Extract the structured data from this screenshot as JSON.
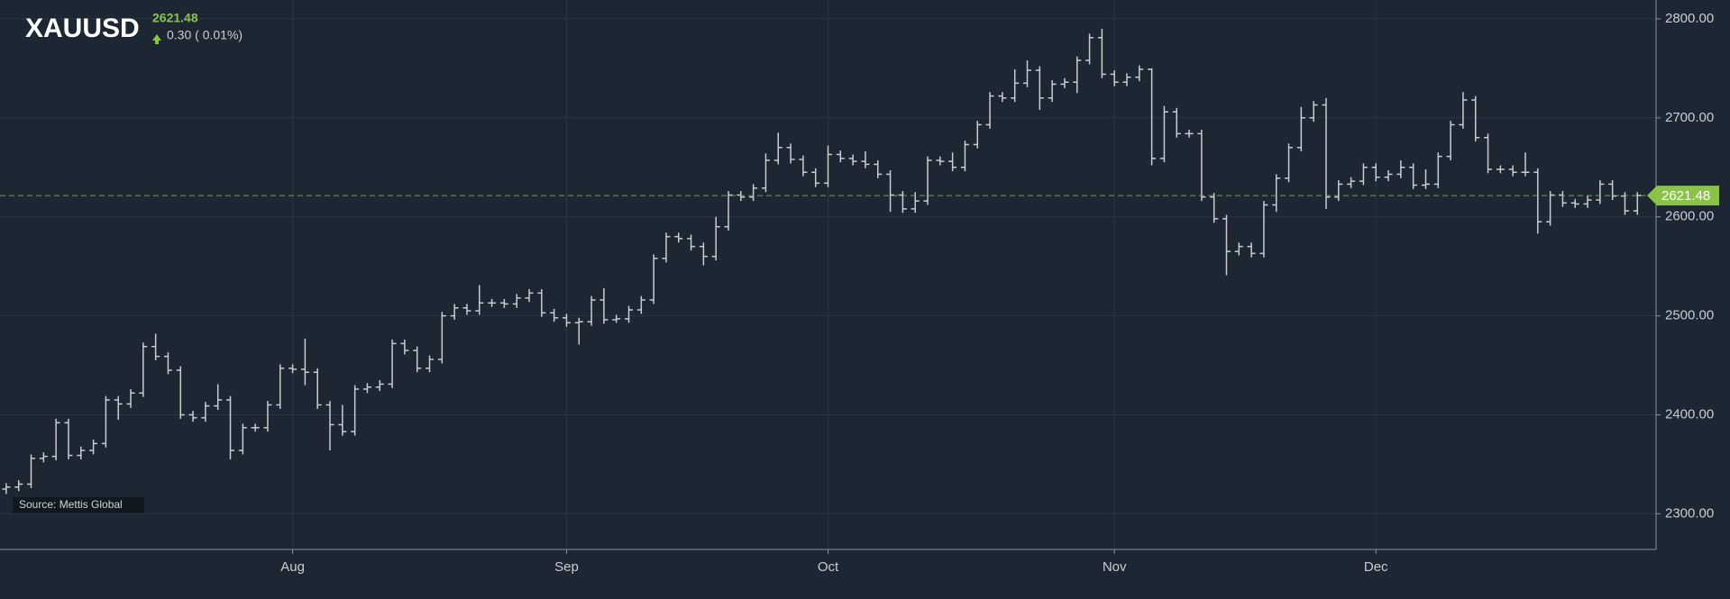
{
  "chart_data": {
    "type": "ohlc",
    "title": "XAUUSD",
    "last_price": 2621.48,
    "change": "0.30 ( 0.01%)",
    "source": "Source: Mettis Global",
    "color": "#c9cdd2",
    "last_price_color": "#8bc34a",
    "grid": true,
    "ylim": [
      2264,
      2819
    ],
    "yticks": [
      {
        "value": 2300,
        "label": "2300.00"
      },
      {
        "value": 2400,
        "label": "2400.00"
      },
      {
        "value": 2500,
        "label": "2500.00"
      },
      {
        "value": 2600,
        "label": "2600.00"
      },
      {
        "value": 2700,
        "label": "2700.00"
      },
      {
        "value": 2800,
        "label": "2800.00"
      }
    ],
    "xlim": [
      -0.5,
      132.5
    ],
    "xticks": [
      {
        "value": 23,
        "label": "Aug"
      },
      {
        "value": 45,
        "label": "Sep"
      },
      {
        "value": 66,
        "label": "Oct"
      },
      {
        "value": 89,
        "label": "Nov"
      },
      {
        "value": 110,
        "label": "Dec"
      }
    ],
    "ohlc": [
      [
        2325,
        2331,
        2320,
        2327
      ],
      [
        2327,
        2334,
        2323,
        2330
      ],
      [
        2330,
        2360,
        2326,
        2356
      ],
      [
        2356,
        2362,
        2352,
        2358
      ],
      [
        2358,
        2396,
        2354,
        2392
      ],
      [
        2392,
        2396,
        2355,
        2359
      ],
      [
        2359,
        2368,
        2355,
        2364
      ],
      [
        2364,
        2375,
        2360,
        2371
      ],
      [
        2371,
        2419,
        2367,
        2415
      ],
      [
        2415,
        2419,
        2395,
        2411
      ],
      [
        2411,
        2426,
        2407,
        2422
      ],
      [
        2422,
        2473,
        2418,
        2469
      ],
      [
        2469,
        2482,
        2455,
        2459
      ],
      [
        2459,
        2463,
        2441,
        2445
      ],
      [
        2445,
        2449,
        2396,
        2400
      ],
      [
        2400,
        2404,
        2393,
        2397
      ],
      [
        2397,
        2413,
        2393,
        2409
      ],
      [
        2409,
        2431,
        2405,
        2415
      ],
      [
        2415,
        2419,
        2355,
        2364
      ],
      [
        2364,
        2391,
        2360,
        2387
      ],
      [
        2387,
        2391,
        2383,
        2387
      ],
      [
        2387,
        2414,
        2383,
        2410
      ],
      [
        2410,
        2451,
        2406,
        2447
      ],
      [
        2447,
        2451,
        2442,
        2446
      ],
      [
        2446,
        2477,
        2430,
        2443
      ],
      [
        2443,
        2447,
        2406,
        2410
      ],
      [
        2410,
        2414,
        2364,
        2390
      ],
      [
        2390,
        2410,
        2379,
        2383
      ],
      [
        2383,
        2430,
        2379,
        2426
      ],
      [
        2426,
        2432,
        2422,
        2428
      ],
      [
        2428,
        2435,
        2424,
        2431
      ],
      [
        2431,
        2476,
        2427,
        2472
      ],
      [
        2472,
        2476,
        2461,
        2465
      ],
      [
        2465,
        2469,
        2443,
        2447
      ],
      [
        2447,
        2460,
        2443,
        2456
      ],
      [
        2456,
        2504,
        2452,
        2500
      ],
      [
        2500,
        2512,
        2496,
        2508
      ],
      [
        2508,
        2512,
        2501,
        2505
      ],
      [
        2505,
        2531,
        2501,
        2513
      ],
      [
        2513,
        2517,
        2509,
        2513
      ],
      [
        2513,
        2517,
        2508,
        2512
      ],
      [
        2512,
        2522,
        2508,
        2518
      ],
      [
        2518,
        2527,
        2514,
        2523
      ],
      [
        2523,
        2527,
        2499,
        2503
      ],
      [
        2503,
        2507,
        2494,
        2498
      ],
      [
        2498,
        2502,
        2489,
        2493
      ],
      [
        2493,
        2498,
        2471,
        2494
      ],
      [
        2494,
        2520,
        2490,
        2516
      ],
      [
        2516,
        2528,
        2492,
        2496
      ],
      [
        2496,
        2501,
        2493,
        2497
      ],
      [
        2497,
        2510,
        2493,
        2506
      ],
      [
        2506,
        2520,
        2502,
        2516
      ],
      [
        2516,
        2562,
        2512,
        2558
      ],
      [
        2558,
        2584,
        2554,
        2580
      ],
      [
        2580,
        2584,
        2574,
        2578
      ],
      [
        2578,
        2582,
        2566,
        2570
      ],
      [
        2570,
        2574,
        2551,
        2560
      ],
      [
        2560,
        2600,
        2556,
        2590
      ],
      [
        2590,
        2626,
        2586,
        2622
      ],
      [
        2622,
        2626,
        2616,
        2620
      ],
      [
        2620,
        2633,
        2616,
        2629
      ],
      [
        2629,
        2664,
        2625,
        2657
      ],
      [
        2657,
        2685,
        2653,
        2670
      ],
      [
        2670,
        2674,
        2654,
        2658
      ],
      [
        2658,
        2662,
        2641,
        2645
      ],
      [
        2645,
        2649,
        2630,
        2634
      ],
      [
        2634,
        2672,
        2630,
        2663
      ],
      [
        2663,
        2667,
        2655,
        2659
      ],
      [
        2659,
        2663,
        2652,
        2656
      ],
      [
        2656,
        2666,
        2649,
        2653
      ],
      [
        2653,
        2657,
        2639,
        2643
      ],
      [
        2643,
        2647,
        2605,
        2622
      ],
      [
        2622,
        2626,
        2604,
        2608
      ],
      [
        2608,
        2625,
        2604,
        2616
      ],
      [
        2616,
        2661,
        2612,
        2657
      ],
      [
        2657,
        2661,
        2652,
        2656
      ],
      [
        2656,
        2665,
        2646,
        2650
      ],
      [
        2650,
        2677,
        2646,
        2673
      ],
      [
        2673,
        2697,
        2669,
        2693
      ],
      [
        2693,
        2726,
        2689,
        2722
      ],
      [
        2722,
        2726,
        2716,
        2720
      ],
      [
        2720,
        2749,
        2716,
        2735
      ],
      [
        2735,
        2758,
        2731,
        2748
      ],
      [
        2748,
        2752,
        2708,
        2720
      ],
      [
        2720,
        2738,
        2716,
        2734
      ],
      [
        2734,
        2740,
        2730,
        2736
      ],
      [
        2736,
        2762,
        2725,
        2758
      ],
      [
        2758,
        2785,
        2754,
        2781
      ],
      [
        2781,
        2790,
        2740,
        2744
      ],
      [
        2744,
        2748,
        2732,
        2736
      ],
      [
        2736,
        2745,
        2732,
        2741
      ],
      [
        2741,
        2753,
        2737,
        2749
      ],
      [
        2749,
        2750,
        2652,
        2659
      ],
      [
        2659,
        2712,
        2655,
        2706
      ],
      [
        2706,
        2710,
        2680,
        2684
      ],
      [
        2684,
        2688,
        2680,
        2684
      ],
      [
        2684,
        2688,
        2616,
        2620
      ],
      [
        2620,
        2624,
        2594,
        2598
      ],
      [
        2598,
        2602,
        2541,
        2565
      ],
      [
        2565,
        2574,
        2561,
        2570
      ],
      [
        2570,
        2574,
        2559,
        2563
      ],
      [
        2563,
        2616,
        2559,
        2612
      ],
      [
        2612,
        2643,
        2605,
        2639
      ],
      [
        2639,
        2674,
        2635,
        2670
      ],
      [
        2670,
        2711,
        2666,
        2700
      ],
      [
        2700,
        2717,
        2696,
        2713
      ],
      [
        2713,
        2720,
        2608,
        2620
      ],
      [
        2620,
        2637,
        2616,
        2633
      ],
      [
        2633,
        2640,
        2629,
        2636
      ],
      [
        2636,
        2654,
        2632,
        2650
      ],
      [
        2650,
        2654,
        2636,
        2640
      ],
      [
        2640,
        2647,
        2636,
        2643
      ],
      [
        2643,
        2657,
        2639,
        2650
      ],
      [
        2650,
        2654,
        2628,
        2632
      ],
      [
        2632,
        2648,
        2628,
        2633
      ],
      [
        2633,
        2665,
        2629,
        2661
      ],
      [
        2661,
        2697,
        2657,
        2693
      ],
      [
        2693,
        2726,
        2689,
        2718
      ],
      [
        2718,
        2722,
        2676,
        2680
      ],
      [
        2680,
        2684,
        2644,
        2648
      ],
      [
        2648,
        2652,
        2644,
        2648
      ],
      [
        2648,
        2652,
        2641,
        2645
      ],
      [
        2645,
        2665,
        2641,
        2645
      ],
      [
        2645,
        2649,
        2583,
        2595
      ],
      [
        2595,
        2626,
        2591,
        2622
      ],
      [
        2622,
        2626,
        2610,
        2614
      ],
      [
        2614,
        2618,
        2609,
        2613
      ],
      [
        2613,
        2621,
        2609,
        2617
      ],
      [
        2617,
        2637,
        2613,
        2633
      ],
      [
        2633,
        2637,
        2617,
        2621
      ],
      [
        2621,
        2625,
        2602,
        2606
      ],
      [
        2606,
        2625,
        2602,
        2621.48
      ]
    ]
  }
}
